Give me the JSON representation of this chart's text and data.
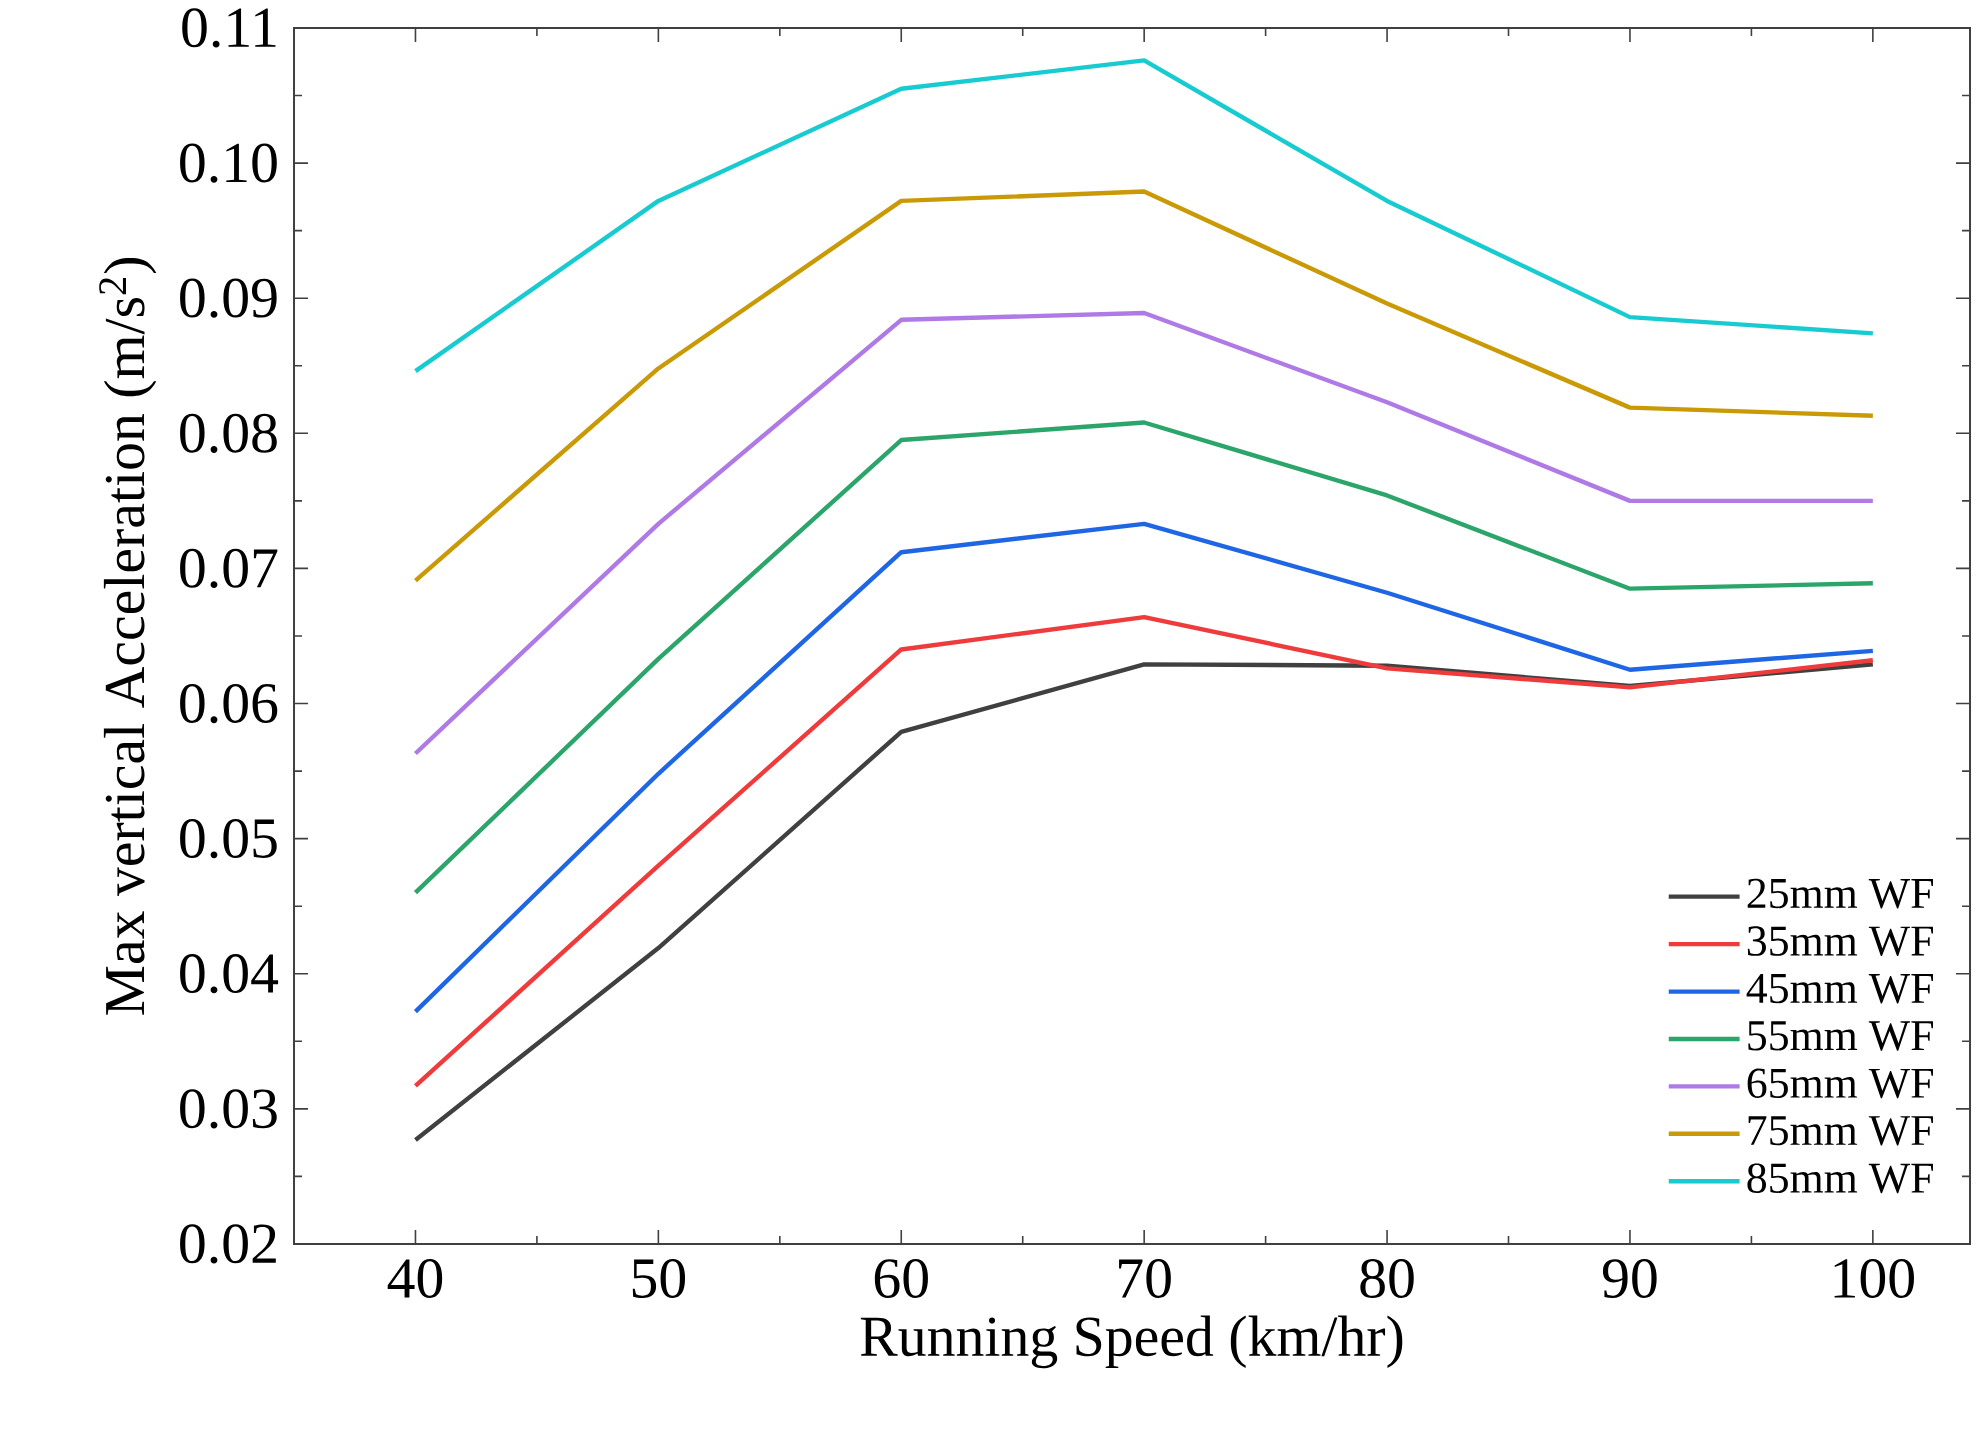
{
  "chart_data": {
    "type": "line",
    "xlabel": "Running Speed (km/hr)",
    "ylabel": "Max vertical Acceleration (m/s$^{2}$)",
    "x": [
      40,
      50,
      60,
      70,
      80,
      90,
      100
    ],
    "xlim": [
      35,
      104
    ],
    "xticks": [
      40,
      50,
      60,
      70,
      80,
      90,
      100
    ],
    "ylim": [
      0.02,
      0.11
    ],
    "yticks": [
      0.02,
      0.03,
      0.04,
      0.05,
      0.06,
      0.07,
      0.08,
      0.09,
      {
        "value": 0.1,
        "label": "0.10"
      },
      0.11
    ],
    "grid": false,
    "legend": "bottom right",
    "marker": "none",
    "line_style": "solid",
    "series": [
      {
        "name": "25mm WF",
        "color": "#404040",
        "values": [
          0.0277,
          0.0419,
          0.0579,
          0.0629,
          0.0628,
          0.0613,
          0.0629
        ]
      },
      {
        "name": "35mm WF",
        "color": "#ef3b3b",
        "values": [
          0.0317,
          0.048,
          0.064,
          0.0664,
          0.0626,
          0.0612,
          0.0632
        ]
      },
      {
        "name": "45mm WF",
        "color": "#1f66e5",
        "values": [
          0.0372,
          0.0548,
          0.0712,
          0.0733,
          0.0682,
          0.0625,
          0.0639
        ]
      },
      {
        "name": "55mm WF",
        "color": "#2ca56a",
        "values": [
          0.046,
          0.0633,
          0.0795,
          0.0808,
          0.0754,
          0.0685,
          0.0689
        ]
      },
      {
        "name": "65mm WF",
        "color": "#b07ae6",
        "values": [
          0.0563,
          0.0733,
          0.0884,
          0.0889,
          0.0823,
          0.075,
          0.075
        ]
      },
      {
        "name": "75mm WF",
        "color": "#c99a06",
        "values": [
          0.0691,
          0.0848,
          0.0972,
          0.0979,
          0.0896,
          0.0819,
          0.0813
        ]
      },
      {
        "name": "85mm WF",
        "color": "#17cbd0",
        "values": [
          0.0846,
          0.0972,
          0.1055,
          0.1076,
          0.0972,
          0.0886,
          0.0874
        ]
      }
    ]
  }
}
